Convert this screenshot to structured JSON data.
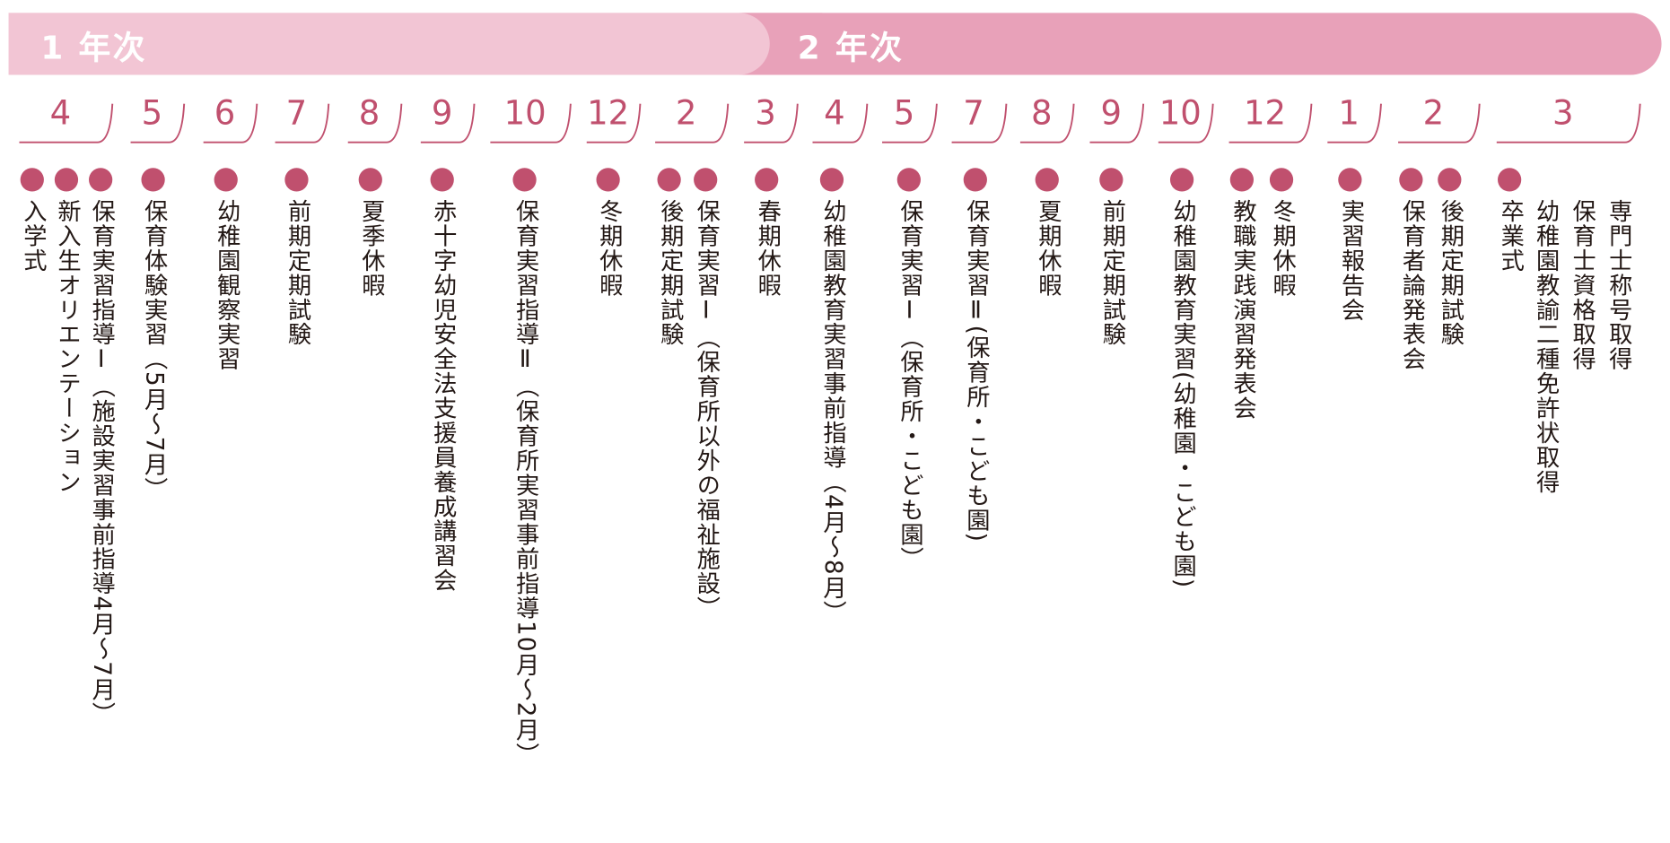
{
  "years": [
    "1 年次",
    "2 年次"
  ],
  "months": [
    {
      "label": "4",
      "events": [
        "入学式",
        "新入生オリエンテーション",
        "保育実習指導Ⅰ（施設実習事前指導4月～7月）"
      ]
    },
    {
      "label": "5",
      "events": [
        "保育体験実習（5月～7月）"
      ]
    },
    {
      "label": "6",
      "events": [
        "幼稚園観察実習"
      ]
    },
    {
      "label": "7",
      "events": [
        "前期定期試験"
      ]
    },
    {
      "label": "8",
      "events": [
        "夏季休暇"
      ]
    },
    {
      "label": "9",
      "events": [
        "赤十字幼児安全法支援員養成講習会"
      ]
    },
    {
      "label": "10",
      "events": [
        "保育実習指導Ⅱ（保育所実習事前指導10月～2月）"
      ]
    },
    {
      "label": "12",
      "events": [
        "冬期休暇"
      ]
    },
    {
      "label": "2",
      "events": [
        "後期定期試験",
        "保育実習Ⅰ（保育所以外の福祉施設）"
      ]
    },
    {
      "label": "3",
      "events": [
        "春期休暇"
      ]
    },
    {
      "label": "4",
      "events": [
        "幼稚園教育実習事前指導（4月～8月）"
      ]
    },
    {
      "label": "5",
      "events": [
        "保育実習Ⅰ（保育所・こども園）"
      ]
    },
    {
      "label": "7",
      "events": [
        "保育実習Ⅱ(保育所・こども園)"
      ]
    },
    {
      "label": "8",
      "events": [
        "夏期休暇"
      ]
    },
    {
      "label": "9",
      "events": [
        "前期定期試験"
      ]
    },
    {
      "label": "10",
      "events": [
        "幼稚園教育実習(幼稚園・こども園)"
      ]
    },
    {
      "label": "12",
      "events": [
        "教職実践演習発表会",
        "冬期休暇"
      ]
    },
    {
      "label": "1",
      "events": [
        "実習報告会"
      ]
    },
    {
      "label": "2",
      "events": [
        "保育者論発表会",
        "後期定期試験"
      ]
    },
    {
      "label": "3",
      "events": [
        "卒業式"
      ],
      "notes": [
        "幼稚園教諭二種免許状取得",
        "保育士資格取得",
        "専門士称号取得"
      ]
    }
  ]
}
